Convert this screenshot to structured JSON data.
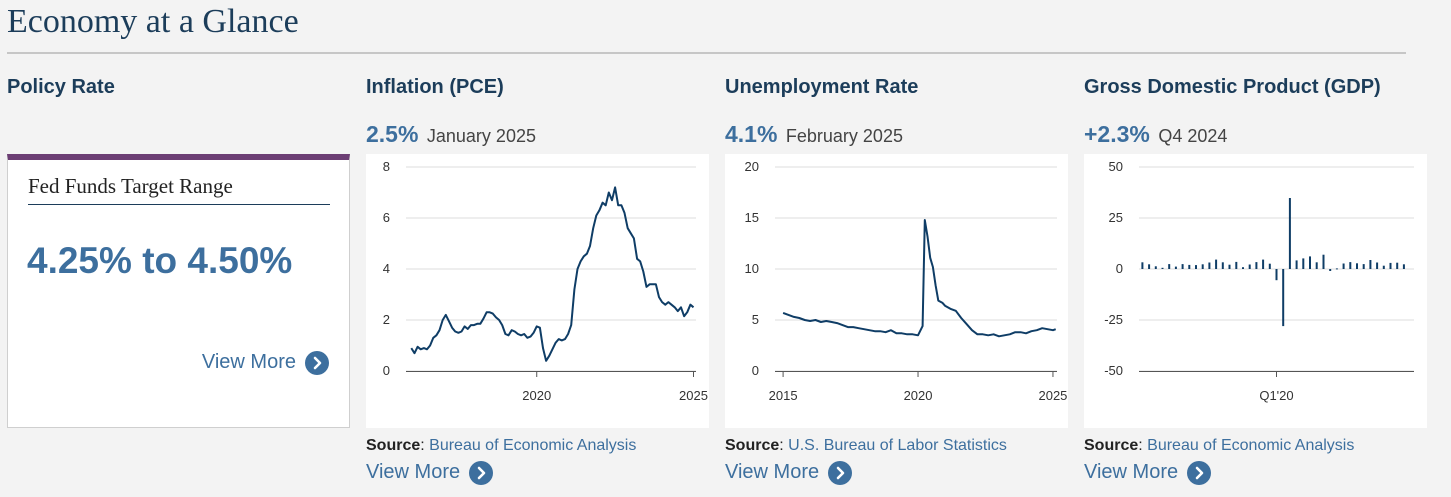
{
  "page": {
    "title": "Economy at a Glance"
  },
  "policy_rate": {
    "heading": "Policy Rate",
    "card_title": "Fed Funds Target Range",
    "range": "4.25% to 4.50%",
    "view_more": "View More"
  },
  "inflation": {
    "heading": "Inflation (PCE)",
    "value": "2.5%",
    "period": "January 2025",
    "source_label": "Source",
    "source_name": "Bureau of Economic Analysis",
    "view_more": "View More"
  },
  "unemployment": {
    "heading": "Unemployment Rate",
    "value": "4.1%",
    "period": "February 2025",
    "source_label": "Source",
    "source_name": "U.S. Bureau of Labor Statistics",
    "view_more": "View More"
  },
  "gdp": {
    "heading": "Gross Domestic Product (GDP)",
    "value": "+2.3%",
    "period": "Q4 2024",
    "source_label": "Source",
    "source_name": "Bureau of Economic Analysis",
    "view_more": "View More"
  },
  "colors": {
    "series": "#0f3d66",
    "accent": "#3d6f9e",
    "policy_bar": "#6c3e74",
    "grid": "#dddddd"
  },
  "icons": {
    "view_more": "chevron-right-circle-icon"
  },
  "chart_data": [
    {
      "id": "inflation",
      "type": "line",
      "x_unit": "year",
      "xlim": [
        2015.83,
        2025.08
      ],
      "ylim": [
        0,
        8
      ],
      "y_ticks": [
        0,
        2,
        4,
        6,
        8
      ],
      "x_ticks": [
        2020,
        2025
      ],
      "x_tick_labels": [
        "2020",
        "2025"
      ],
      "grid": true,
      "series": [
        {
          "points": [
            [
              2016.0,
              0.9
            ],
            [
              2016.1,
              0.7
            ],
            [
              2016.2,
              0.95
            ],
            [
              2016.3,
              0.85
            ],
            [
              2016.4,
              0.9
            ],
            [
              2016.5,
              0.85
            ],
            [
              2016.6,
              1.0
            ],
            [
              2016.7,
              1.3
            ],
            [
              2016.8,
              1.4
            ],
            [
              2016.9,
              1.6
            ],
            [
              2017.0,
              2.0
            ],
            [
              2017.1,
              2.2
            ],
            [
              2017.2,
              1.95
            ],
            [
              2017.3,
              1.7
            ],
            [
              2017.4,
              1.55
            ],
            [
              2017.5,
              1.5
            ],
            [
              2017.6,
              1.55
            ],
            [
              2017.7,
              1.75
            ],
            [
              2017.8,
              1.65
            ],
            [
              2017.9,
              1.8
            ],
            [
              2018.0,
              1.8
            ],
            [
              2018.1,
              1.85
            ],
            [
              2018.2,
              1.85
            ],
            [
              2018.3,
              2.05
            ],
            [
              2018.4,
              2.3
            ],
            [
              2018.5,
              2.3
            ],
            [
              2018.6,
              2.25
            ],
            [
              2018.7,
              2.1
            ],
            [
              2018.8,
              2.0
            ],
            [
              2018.9,
              1.8
            ],
            [
              2019.0,
              1.45
            ],
            [
              2019.1,
              1.4
            ],
            [
              2019.2,
              1.6
            ],
            [
              2019.3,
              1.55
            ],
            [
              2019.4,
              1.45
            ],
            [
              2019.5,
              1.4
            ],
            [
              2019.6,
              1.45
            ],
            [
              2019.7,
              1.3
            ],
            [
              2019.8,
              1.35
            ],
            [
              2019.9,
              1.5
            ],
            [
              2020.0,
              1.75
            ],
            [
              2020.1,
              1.7
            ],
            [
              2020.2,
              0.9
            ],
            [
              2020.3,
              0.4
            ],
            [
              2020.4,
              0.6
            ],
            [
              2020.5,
              0.85
            ],
            [
              2020.6,
              1.1
            ],
            [
              2020.7,
              1.25
            ],
            [
              2020.8,
              1.2
            ],
            [
              2020.9,
              1.25
            ],
            [
              2021.0,
              1.45
            ],
            [
              2021.1,
              1.8
            ],
            [
              2021.2,
              3.2
            ],
            [
              2021.3,
              4.0
            ],
            [
              2021.4,
              4.3
            ],
            [
              2021.5,
              4.5
            ],
            [
              2021.6,
              4.6
            ],
            [
              2021.7,
              4.9
            ],
            [
              2021.8,
              5.6
            ],
            [
              2021.9,
              6.1
            ],
            [
              2022.0,
              6.3
            ],
            [
              2022.1,
              6.6
            ],
            [
              2022.2,
              6.5
            ],
            [
              2022.3,
              7.0
            ],
            [
              2022.4,
              6.7
            ],
            [
              2022.5,
              7.2
            ],
            [
              2022.6,
              6.5
            ],
            [
              2022.7,
              6.5
            ],
            [
              2022.8,
              6.2
            ],
            [
              2022.9,
              5.6
            ],
            [
              2023.0,
              5.4
            ],
            [
              2023.1,
              5.2
            ],
            [
              2023.2,
              4.4
            ],
            [
              2023.3,
              4.3
            ],
            [
              2023.4,
              3.9
            ],
            [
              2023.5,
              3.3
            ],
            [
              2023.6,
              3.4
            ],
            [
              2023.7,
              3.4
            ],
            [
              2023.8,
              3.4
            ],
            [
              2023.9,
              2.9
            ],
            [
              2024.0,
              2.7
            ],
            [
              2024.1,
              2.6
            ],
            [
              2024.2,
              2.7
            ],
            [
              2024.3,
              2.6
            ],
            [
              2024.4,
              2.5
            ],
            [
              2024.5,
              2.35
            ],
            [
              2024.6,
              2.5
            ],
            [
              2024.7,
              2.15
            ],
            [
              2024.8,
              2.3
            ],
            [
              2024.9,
              2.6
            ],
            [
              2025.0,
              2.5
            ]
          ]
        }
      ]
    },
    {
      "id": "unemployment",
      "type": "line",
      "x_unit": "year",
      "xlim": [
        2014.7,
        2025.15
      ],
      "ylim": [
        0,
        20
      ],
      "y_ticks": [
        0,
        5,
        10,
        15,
        20
      ],
      "x_ticks": [
        2015,
        2020,
        2025
      ],
      "x_tick_labels": [
        "2015",
        "2020",
        "2025"
      ],
      "grid": true,
      "series": [
        {
          "points": [
            [
              2015.0,
              5.7
            ],
            [
              2015.2,
              5.5
            ],
            [
              2015.4,
              5.3
            ],
            [
              2015.6,
              5.2
            ],
            [
              2015.8,
              5.0
            ],
            [
              2016.0,
              4.9
            ],
            [
              2016.2,
              5.0
            ],
            [
              2016.4,
              4.8
            ],
            [
              2016.6,
              4.9
            ],
            [
              2016.8,
              4.8
            ],
            [
              2017.0,
              4.7
            ],
            [
              2017.2,
              4.5
            ],
            [
              2017.4,
              4.3
            ],
            [
              2017.6,
              4.3
            ],
            [
              2017.8,
              4.2
            ],
            [
              2018.0,
              4.1
            ],
            [
              2018.2,
              4.0
            ],
            [
              2018.4,
              3.9
            ],
            [
              2018.6,
              3.9
            ],
            [
              2018.8,
              3.8
            ],
            [
              2019.0,
              4.0
            ],
            [
              2019.2,
              3.7
            ],
            [
              2019.4,
              3.7
            ],
            [
              2019.6,
              3.6
            ],
            [
              2019.8,
              3.6
            ],
            [
              2020.0,
              3.5
            ],
            [
              2020.17,
              4.4
            ],
            [
              2020.25,
              14.8
            ],
            [
              2020.35,
              13.2
            ],
            [
              2020.45,
              11.1
            ],
            [
              2020.55,
              10.2
            ],
            [
              2020.65,
              8.4
            ],
            [
              2020.75,
              6.9
            ],
            [
              2020.9,
              6.7
            ],
            [
              2021.0,
              6.4
            ],
            [
              2021.2,
              6.1
            ],
            [
              2021.4,
              5.9
            ],
            [
              2021.6,
              5.2
            ],
            [
              2021.8,
              4.6
            ],
            [
              2022.0,
              4.0
            ],
            [
              2022.2,
              3.6
            ],
            [
              2022.4,
              3.6
            ],
            [
              2022.6,
              3.5
            ],
            [
              2022.8,
              3.6
            ],
            [
              2023.0,
              3.4
            ],
            [
              2023.2,
              3.5
            ],
            [
              2023.4,
              3.6
            ],
            [
              2023.6,
              3.8
            ],
            [
              2023.8,
              3.8
            ],
            [
              2024.0,
              3.7
            ],
            [
              2024.2,
              3.9
            ],
            [
              2024.4,
              4.0
            ],
            [
              2024.6,
              4.2
            ],
            [
              2024.8,
              4.1
            ],
            [
              2025.0,
              4.0
            ],
            [
              2025.1,
              4.1
            ]
          ]
        }
      ]
    },
    {
      "id": "gdp",
      "type": "bar",
      "x_unit": "quarter index (0 = Q1 2015)",
      "xlim": [
        -0.5,
        40.5
      ],
      "ylim": [
        -50,
        50
      ],
      "y_ticks": [
        -50,
        -25,
        0,
        25,
        50
      ],
      "x_ticks": [
        20
      ],
      "x_tick_labels": [
        "Q1'20"
      ],
      "grid": true,
      "series": [
        {
          "values": [
            3.3,
            2.3,
            1.3,
            0.6,
            2.4,
            1.2,
            2.4,
            2.0,
            1.9,
            2.3,
            3.2,
            4.6,
            3.3,
            2.1,
            3.5,
            0.9,
            2.2,
            3.4,
            4.6,
            2.6,
            -5.5,
            -28.0,
            34.8,
            4.2,
            5.2,
            6.2,
            3.3,
            7.0,
            -1.0,
            0.3,
            2.7,
            3.4,
            2.8,
            2.4,
            4.4,
            3.2,
            1.6,
            3.0,
            3.1,
            2.3
          ]
        }
      ]
    }
  ]
}
